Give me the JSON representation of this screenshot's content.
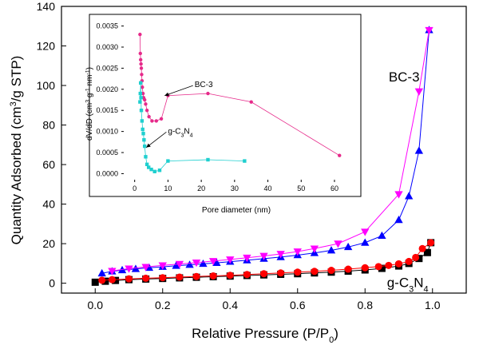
{
  "chart_data": [
    {
      "type": "line",
      "role": "main",
      "xlabel": "Relative Pressure (P/P",
      "xlabel_sub": "0",
      "xlabel_close": ")",
      "ylabel": "Quantity Adsorbed (cm",
      "ylabel_sup": "3",
      "ylabel_rest": "/g STP)",
      "xlim": [
        -0.1,
        1.1
      ],
      "ylim": [
        -5,
        140
      ],
      "x_ticks": [
        0.0,
        0.2,
        0.4,
        0.6,
        0.8,
        1.0
      ],
      "x_tick_labels": [
        "0.0",
        "0.2",
        "0.4",
        "0.6",
        "0.8",
        "1.0"
      ],
      "y_ticks": [
        0,
        20,
        40,
        60,
        80,
        100,
        120,
        140
      ],
      "y_tick_labels": [
        "0",
        "20",
        "40",
        "60",
        "80",
        "100",
        "120",
        "140"
      ],
      "annotations": [
        {
          "text": "BC-3",
          "x": 0.87,
          "y": 102
        },
        {
          "text_main": "g-C",
          "text_sub1": "3",
          "text_mid": "N",
          "text_sub2": "4",
          "x": 0.865,
          "y": -2
        }
      ],
      "series": [
        {
          "name": "BC-3 adsorption",
          "color": "#0000ff",
          "marker": "triangle-up",
          "x": [
            0.02,
            0.05,
            0.08,
            0.12,
            0.16,
            0.2,
            0.24,
            0.28,
            0.32,
            0.36,
            0.4,
            0.45,
            0.5,
            0.55,
            0.6,
            0.65,
            0.7,
            0.75,
            0.8,
            0.85,
            0.9,
            0.93,
            0.96,
            0.99
          ],
          "y": [
            5,
            6,
            6.6,
            7.2,
            7.8,
            8.3,
            8.8,
            9.3,
            9.8,
            10.3,
            10.9,
            11.6,
            12.4,
            13.2,
            14.2,
            15.3,
            16.6,
            18.3,
            20.5,
            24,
            32,
            44,
            67,
            128
          ]
        },
        {
          "name": "BC-3 desorption",
          "color": "#ff00ff",
          "marker": "triangle-down",
          "x": [
            0.99,
            0.96,
            0.9,
            0.8,
            0.72,
            0.65,
            0.6,
            0.55,
            0.5,
            0.45,
            0.4,
            0.35,
            0.3,
            0.25,
            0.2,
            0.15,
            0.1,
            0.05
          ],
          "y": [
            128,
            97,
            45,
            26,
            20,
            17.5,
            16,
            14.8,
            13.8,
            12.9,
            12,
            11.2,
            10.4,
            9.7,
            9,
            8.2,
            7.4,
            6.2
          ]
        },
        {
          "name": "g-C3N4 adsorption",
          "color": "#000000",
          "marker": "square",
          "x": [
            0.0,
            0.03,
            0.06,
            0.1,
            0.15,
            0.2,
            0.25,
            0.3,
            0.35,
            0.4,
            0.45,
            0.5,
            0.55,
            0.6,
            0.65,
            0.7,
            0.75,
            0.8,
            0.85,
            0.9,
            0.93,
            0.96,
            0.985,
            0.995
          ],
          "y": [
            0.5,
            1,
            1.4,
            1.8,
            2.1,
            2.4,
            2.7,
            3,
            3.3,
            3.6,
            3.9,
            4.2,
            4.5,
            4.8,
            5.2,
            5.6,
            6.1,
            6.7,
            7.5,
            8.7,
            10,
            12.5,
            15.5,
            20.5
          ]
        },
        {
          "name": "g-C3N4 desorption",
          "color": "#ff0000",
          "marker": "circle",
          "x": [
            0.995,
            0.97,
            0.95,
            0.93,
            0.9,
            0.87,
            0.84,
            0.8,
            0.75,
            0.7,
            0.65,
            0.6,
            0.55,
            0.5,
            0.45,
            0.4,
            0.35,
            0.3,
            0.25,
            0.2,
            0.15,
            0.1,
            0.05,
            0.02
          ],
          "y": [
            20.5,
            17.5,
            13,
            11,
            9.8,
            9,
            8.4,
            7.8,
            7.1,
            6.5,
            6,
            5.6,
            5.2,
            4.8,
            4.4,
            4,
            3.7,
            3.4,
            3.1,
            2.8,
            2.5,
            2.2,
            1.8,
            1.5
          ]
        }
      ]
    },
    {
      "type": "line",
      "role": "inset",
      "xlabel": "Pore diameter (nm)",
      "ylabel": "dV/dD (cm",
      "ylabel_sup1": "3",
      "ylabel_mid": " g",
      "ylabel_sup2": "-1",
      "ylabel_mid2": " nm",
      "ylabel_sup3": "-1",
      "ylabel_close": ")",
      "xlim": [
        -4,
        66
      ],
      "ylim": [
        -0.0002,
        0.0037
      ],
      "x_ticks": [
        0,
        10,
        20,
        30,
        40,
        50,
        60
      ],
      "x_tick_labels": [
        "0",
        "10",
        "20",
        "30",
        "40",
        "50",
        "60"
      ],
      "y_ticks": [
        0.0,
        0.0005,
        0.001,
        0.0015,
        0.002,
        0.0025,
        0.003,
        0.0035
      ],
      "y_tick_labels": [
        "0.0000",
        "0.0005",
        "0.0010",
        "0.0015",
        "0.0020",
        "0.0025",
        "0.0030",
        "0.0035"
      ],
      "annotations": [
        {
          "text": "BC-3",
          "x": 18,
          "y": 0.00205,
          "arrow_to": [
            9,
            0.00185
          ]
        },
        {
          "text_main": "g-C",
          "text_sub1": "3",
          "text_mid": "N",
          "text_sub2": "4",
          "x": 10,
          "y": 0.00095,
          "arrow_to": [
            3.5,
            0.00062
          ]
        }
      ],
      "series": [
        {
          "name": "BC-3",
          "color": "#e62a8a",
          "marker": "circle",
          "x": [
            1.6,
            1.7,
            1.8,
            1.9,
            2.0,
            2.1,
            2.2,
            2.3,
            2.5,
            2.7,
            3.0,
            3.3,
            3.7,
            4.3,
            5.2,
            6.5,
            8,
            10,
            22,
            35,
            61.5
          ],
          "y": [
            0.0033,
            0.00285,
            0.0027,
            0.0026,
            0.0025,
            0.00235,
            0.0022,
            0.00205,
            0.0019,
            0.0018,
            0.00175,
            0.00165,
            0.0015,
            0.00135,
            0.00125,
            0.00125,
            0.0013,
            0.00185,
            0.0019,
            0.0017,
            0.00043
          ]
        },
        {
          "name": "g-C3N4",
          "color": "#1fcfcf",
          "marker": "square",
          "x": [
            1.6,
            1.7,
            1.8,
            1.9,
            2.0,
            2.2,
            2.4,
            2.6,
            2.8,
            3.0,
            3.3,
            3.7,
            4.2,
            5.0,
            6.0,
            7.5,
            10,
            22,
            33
          ],
          "y": [
            0.0017,
            0.0019,
            0.00215,
            0.0018,
            0.0015,
            0.00125,
            0.00105,
            0.00095,
            0.0008,
            0.00065,
            0.0004,
            0.00022,
            0.00015,
            0.0001,
            5e-05,
            8e-05,
            0.0003,
            0.00033,
            0.0003
          ]
        }
      ]
    }
  ]
}
